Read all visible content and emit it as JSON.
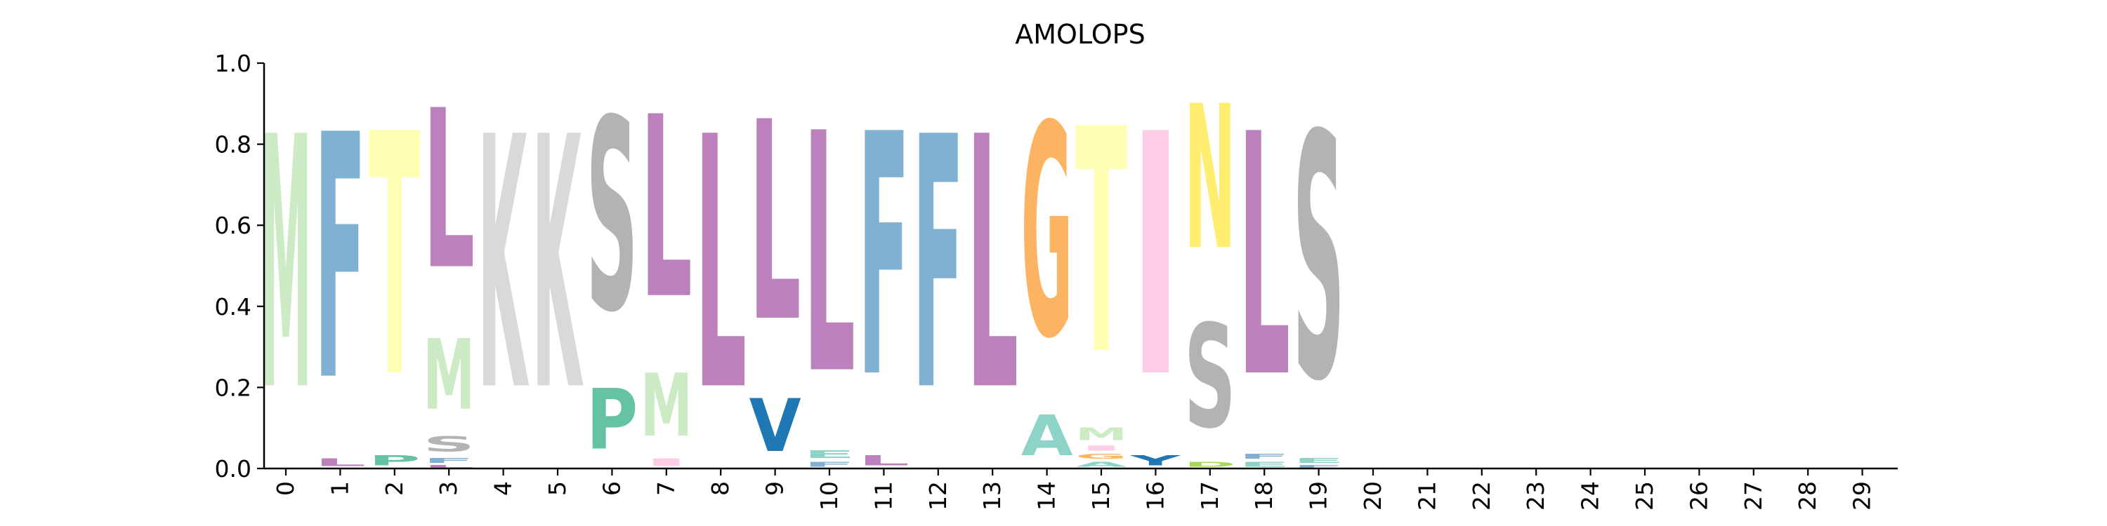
{
  "chart_data": {
    "type": "sequence-logo",
    "title": "AMOLOPS",
    "xlabel": "",
    "ylabel": "",
    "ylim": [
      0,
      1.0
    ],
    "y_ticks": [
      "0.0",
      "0.2",
      "0.4",
      "0.6",
      "0.8",
      "1.0"
    ],
    "x_ticks": [
      "0",
      "1",
      "2",
      "3",
      "4",
      "5",
      "6",
      "7",
      "8",
      "9",
      "10",
      "11",
      "12",
      "13",
      "14",
      "15",
      "16",
      "17",
      "18",
      "19",
      "20",
      "21",
      "22",
      "23",
      "24",
      "25",
      "26",
      "27",
      "28",
      "29"
    ],
    "residue_colors": {
      "M": "#ccebc5",
      "F": "#80b1d3",
      "T": "#ffffb3",
      "L": "#bc80bd",
      "K": "#d9d9d9",
      "S": "#b3b3b3",
      "P": "#66c2a5",
      "V": "#1f78b4",
      "G": "#fdb462",
      "A": "#8dd3c7",
      "I": "#fccde5",
      "N": "#ffed6f",
      "E": "#8dd3c7",
      "Y": "#1f78b4",
      "D": "#a6d854",
      "R": "#80b1d3"
    },
    "positions": [
      {
        "pos": 0,
        "letters": [
          {
            "aa": "M",
            "p": 1.0
          }
        ]
      },
      {
        "pos": 1,
        "letters": [
          {
            "aa": "L",
            "p": 0.03
          },
          {
            "aa": "F",
            "p": 0.97
          }
        ]
      },
      {
        "pos": 2,
        "letters": [
          {
            "aa": "P",
            "p": 0.04
          },
          {
            "aa": "T",
            "p": 0.96
          }
        ]
      },
      {
        "pos": 3,
        "letters": [
          {
            "aa": "L",
            "p": 0.01
          },
          {
            "aa": "F",
            "p": 0.02
          },
          {
            "aa": "S",
            "p": 0.06
          },
          {
            "aa": "M",
            "p": 0.28
          },
          {
            "aa": "L",
            "p": 0.63
          }
        ]
      },
      {
        "pos": 4,
        "letters": [
          {
            "aa": "K",
            "p": 1.0
          }
        ]
      },
      {
        "pos": 5,
        "letters": [
          {
            "aa": "K",
            "p": 1.0
          }
        ]
      },
      {
        "pos": 6,
        "letters": [
          {
            "aa": "P",
            "p": 0.24
          },
          {
            "aa": "S",
            "p": 0.76
          }
        ]
      },
      {
        "pos": 7,
        "letters": [
          {
            "aa": "I",
            "p": 0.03
          },
          {
            "aa": "M",
            "p": 0.25
          },
          {
            "aa": "L",
            "p": 0.72
          }
        ]
      },
      {
        "pos": 8,
        "letters": [
          {
            "aa": "L",
            "p": 1.0
          }
        ]
      },
      {
        "pos": 9,
        "letters": [
          {
            "aa": "V",
            "p": 0.21
          },
          {
            "aa": "L",
            "p": 0.79
          }
        ]
      },
      {
        "pos": 10,
        "letters": [
          {
            "aa": "F",
            "p": 0.02
          },
          {
            "aa": "E",
            "p": 0.03
          },
          {
            "aa": "L",
            "p": 0.95
          }
        ]
      },
      {
        "pos": 11,
        "letters": [
          {
            "aa": "L",
            "p": 0.04
          },
          {
            "aa": "F",
            "p": 0.96
          }
        ]
      },
      {
        "pos": 12,
        "letters": [
          {
            "aa": "F",
            "p": 1.0
          }
        ]
      },
      {
        "pos": 13,
        "letters": [
          {
            "aa": "L",
            "p": 1.0
          }
        ]
      },
      {
        "pos": 14,
        "letters": [
          {
            "aa": "A",
            "p": 0.16
          },
          {
            "aa": "G",
            "p": 0.84
          }
        ]
      },
      {
        "pos": 15,
        "letters": [
          {
            "aa": "A",
            "p": 0.02
          },
          {
            "aa": "G",
            "p": 0.02
          },
          {
            "aa": "I",
            "p": 0.02
          },
          {
            "aa": "M",
            "p": 0.05
          },
          {
            "aa": "T",
            "p": 0.89
          }
        ]
      },
      {
        "pos": 16,
        "letters": [
          {
            "aa": "Y",
            "p": 0.04
          },
          {
            "aa": "I",
            "p": 0.96
          }
        ]
      },
      {
        "pos": 17,
        "letters": [
          {
            "aa": "D",
            "p": 0.02
          },
          {
            "aa": "S",
            "p": 0.41
          },
          {
            "aa": "N",
            "p": 0.57
          }
        ]
      },
      {
        "pos": 18,
        "letters": [
          {
            "aa": "E",
            "p": 0.02
          },
          {
            "aa": "F",
            "p": 0.02
          },
          {
            "aa": "L",
            "p": 0.96
          }
        ]
      },
      {
        "pos": 19,
        "letters": [
          {
            "aa": "F",
            "p": 0.01
          },
          {
            "aa": "E",
            "p": 0.02
          },
          {
            "aa": "S",
            "p": 0.97
          }
        ]
      }
    ]
  }
}
